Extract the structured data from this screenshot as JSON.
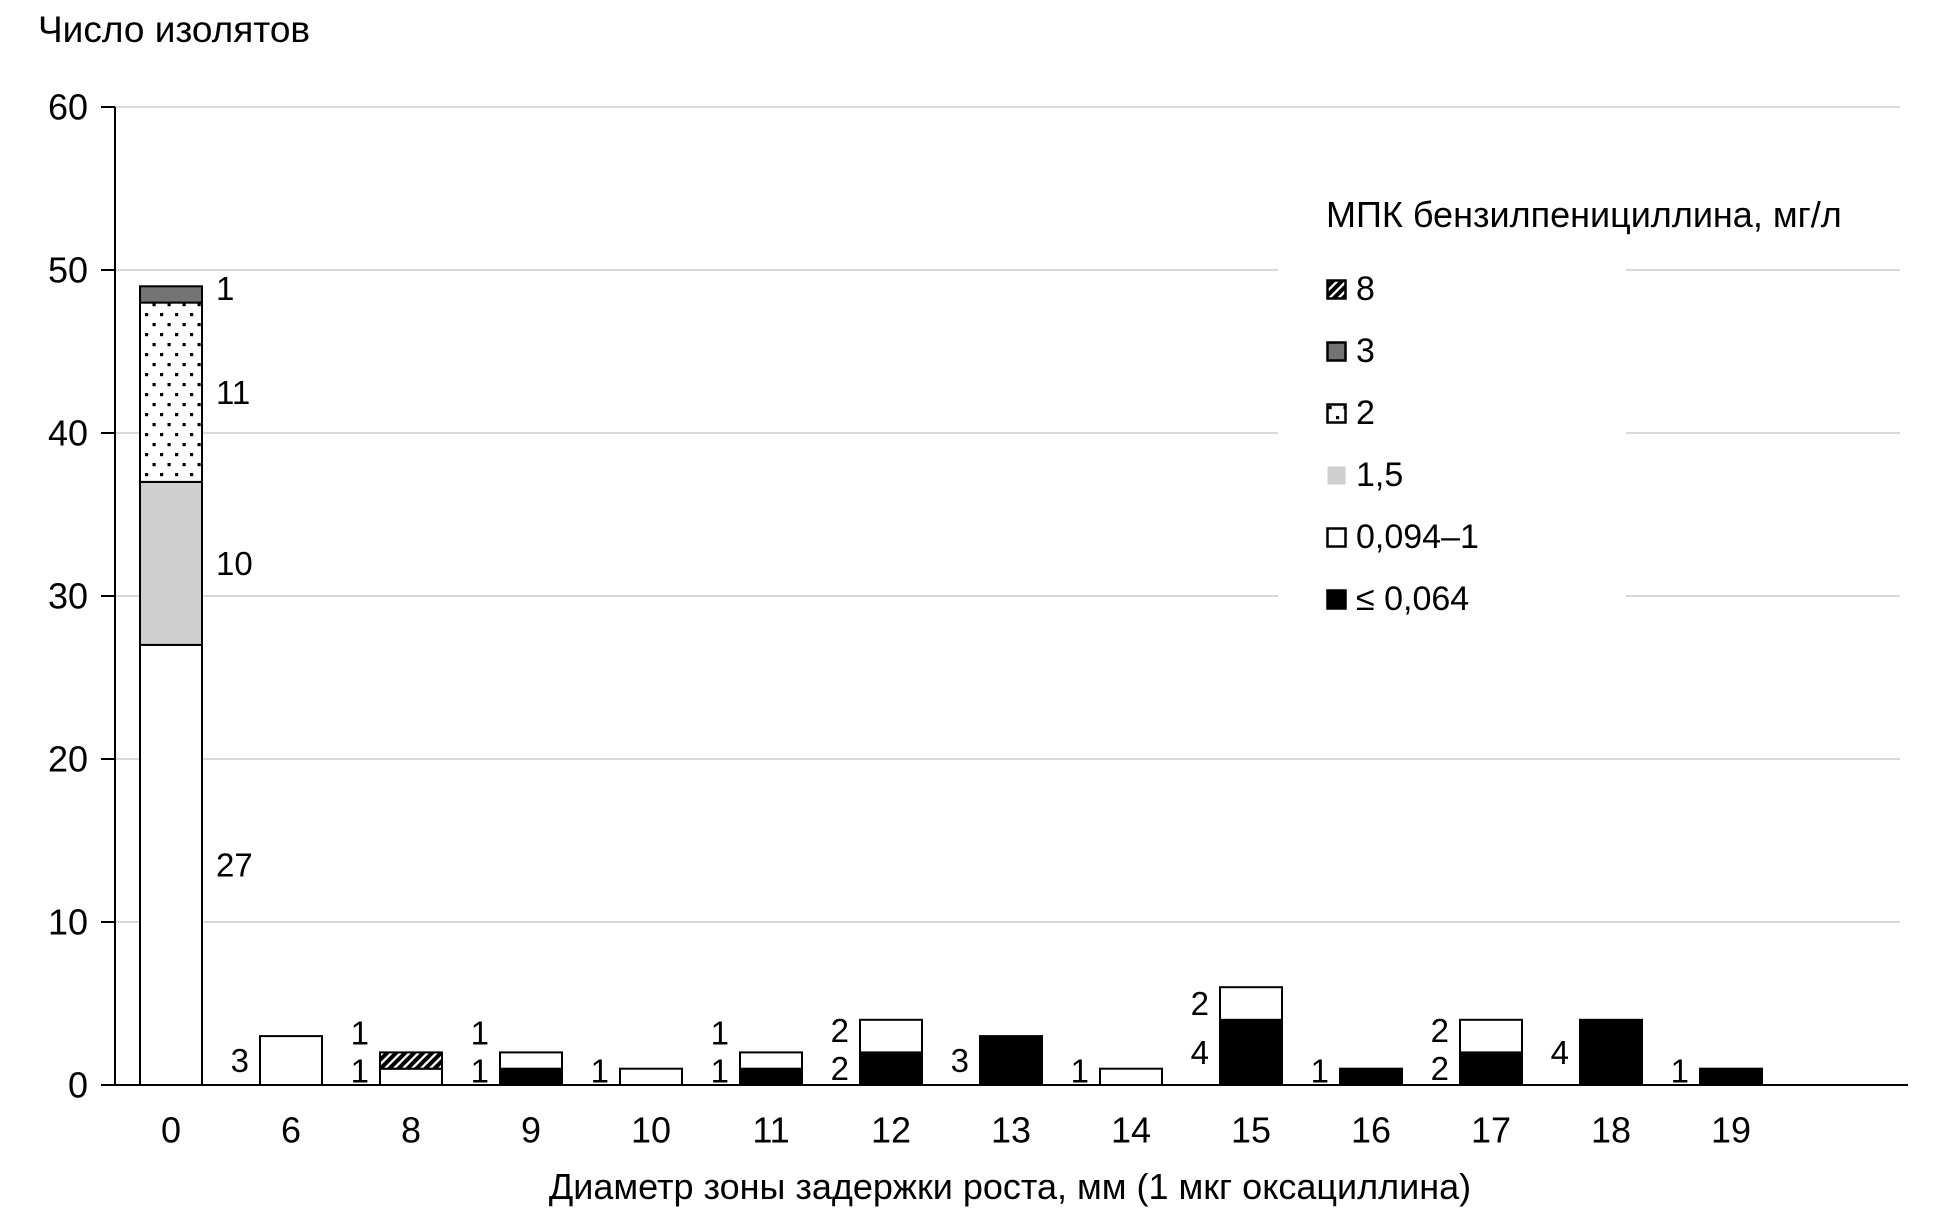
{
  "chart_data": {
    "type": "bar",
    "stacked": true,
    "title": "",
    "ylabel": "Число изолятов",
    "xlabel": "Диаметр зоны задержки роста, мм (1 мкг оксациллина)",
    "categories": [
      "0",
      "6",
      "8",
      "9",
      "10",
      "11",
      "12",
      "13",
      "14",
      "15",
      "16",
      "17",
      "18",
      "19"
    ],
    "series": [
      {
        "name": "≤ 0,064",
        "pattern": "black",
        "values": [
          0,
          0,
          0,
          1,
          0,
          1,
          2,
          3,
          0,
          4,
          1,
          2,
          4,
          1
        ]
      },
      {
        "name": "0,094–1",
        "pattern": "white",
        "values": [
          27,
          3,
          1,
          1,
          1,
          1,
          2,
          0,
          1,
          2,
          0,
          2,
          0,
          0
        ]
      },
      {
        "name": "1,5",
        "pattern": "lightgray",
        "values": [
          10,
          0,
          0,
          0,
          0,
          0,
          0,
          0,
          0,
          0,
          0,
          0,
          0,
          0
        ]
      },
      {
        "name": "2",
        "pattern": "dots",
        "values": [
          11,
          0,
          0,
          0,
          0,
          0,
          0,
          0,
          0,
          0,
          0,
          0,
          0,
          0
        ]
      },
      {
        "name": "3",
        "pattern": "darkgray",
        "values": [
          1,
          0,
          0,
          0,
          0,
          0,
          0,
          0,
          0,
          0,
          0,
          0,
          0,
          0
        ]
      },
      {
        "name": "8",
        "pattern": "hatch",
        "values": [
          0,
          0,
          1,
          0,
          0,
          0,
          0,
          0,
          0,
          0,
          0,
          0,
          0,
          0
        ]
      }
    ],
    "ylim": [
      0,
      60
    ],
    "yticks": [
      0,
      10,
      20,
      30,
      40,
      50,
      60
    ],
    "grid": true,
    "legend_position": "right-inside",
    "data_labels": true
  },
  "legend": {
    "title": "МПК бензилпенициллина, мг/л",
    "items": [
      {
        "label": "8",
        "pattern": "hatch"
      },
      {
        "label": "3",
        "pattern": "darkgray"
      },
      {
        "label": "2",
        "pattern": "dots"
      },
      {
        "label": "1,5",
        "pattern": "lightgray"
      },
      {
        "label": "0,094–1",
        "pattern": "white"
      },
      {
        "label": "≤ 0,064",
        "pattern": "black"
      }
    ]
  },
  "colors": {
    "bar_black": "#000000",
    "bar_white": "#ffffff",
    "bar_light_gray": "#cfcfcf",
    "bar_dark_gray": "#737373",
    "gridline": "#d9d9d9",
    "axis": "#000000",
    "text": "#000000"
  }
}
